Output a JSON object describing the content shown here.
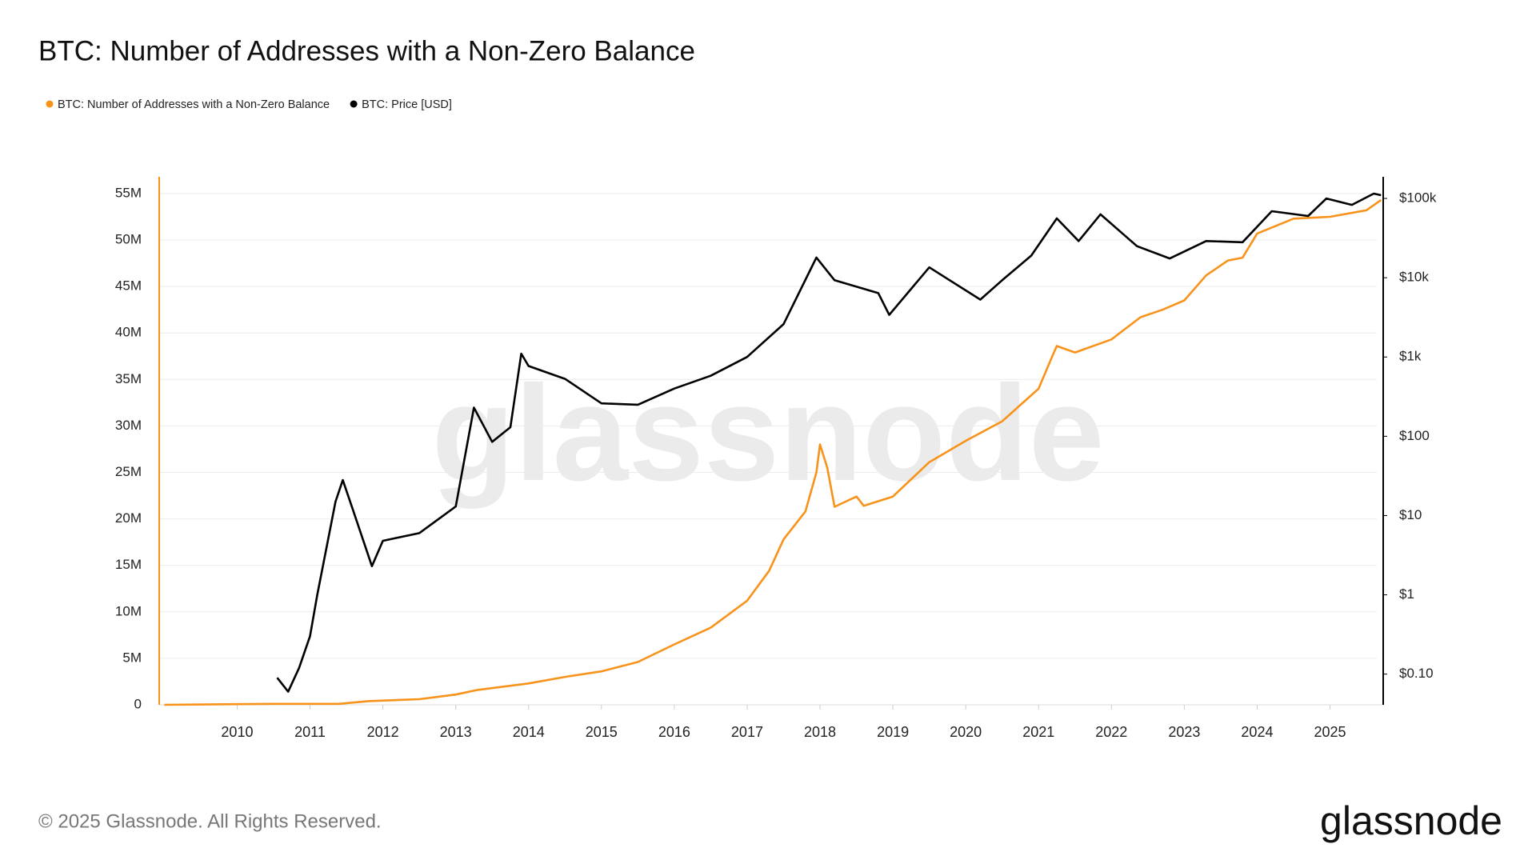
{
  "chart_data": {
    "type": "line",
    "title": "BTC: Number of Addresses with a Non-Zero Balance",
    "footer": "© 2025 Glassnode. All Rights Reserved.",
    "logo": "glassnode",
    "watermark": "glassnode",
    "xlim": [
      2008.93,
      2025.73
    ],
    "xticks": [
      2010,
      2011,
      2012,
      2013,
      2014,
      2015,
      2016,
      2017,
      2018,
      2019,
      2020,
      2021,
      2022,
      2023,
      2024,
      2025
    ],
    "ylim": [
      0,
      56800000
    ],
    "yticks": [
      0,
      {
        "value": 5000000,
        "label": "5M"
      },
      {
        "value": 10000000,
        "label": "10M"
      },
      {
        "value": 15000000,
        "label": "15M"
      },
      {
        "value": 20000000,
        "label": "20M"
      },
      {
        "value": 25000000,
        "label": "25M"
      },
      {
        "value": 30000000,
        "label": "30M"
      },
      {
        "value": 35000000,
        "label": "35M"
      },
      {
        "value": 40000000,
        "label": "40M"
      },
      {
        "value": 45000000,
        "label": "45M"
      },
      {
        "value": 50000000,
        "label": "50M"
      },
      {
        "value": 55000000,
        "label": "55M"
      }
    ],
    "y2lim": [
      0.041,
      187500
    ],
    "y2log": true,
    "y2ticks": [
      {
        "value": 0.1,
        "label": "$0.10"
      },
      {
        "value": 1,
        "label": "$1"
      },
      {
        "value": 10,
        "label": "$10"
      },
      {
        "value": 100,
        "label": "$100"
      },
      {
        "value": 1000,
        "label": "$1k"
      },
      {
        "value": 10000,
        "label": "$10k"
      },
      {
        "value": 100000,
        "label": "$100k"
      }
    ],
    "grid": true,
    "legend": "top-left",
    "series": [
      {
        "name": "BTC: Number of Addresses with a Non-Zero Balance",
        "color": "#f7931a",
        "x": [
          2009.0,
          2010.5,
          2011.4,
          2011.8,
          2012.5,
          2013.0,
          2013.3,
          2014.0,
          2014.5,
          2015.0,
          2015.5,
          2016.0,
          2016.5,
          2017.0,
          2017.3,
          2017.5,
          2017.8,
          2017.95,
          2018.0,
          2018.1,
          2018.2,
          2018.5,
          2018.6,
          2019.0,
          2019.5,
          2020.0,
          2020.5,
          2021.0,
          2021.2,
          2021.25,
          2021.5,
          2022.0,
          2022.4,
          2022.7,
          2023.0,
          2023.3,
          2023.6,
          2023.8,
          2024.0,
          2024.5,
          2025.0,
          2025.5,
          2025.7
        ],
        "values": [
          0,
          100000,
          100000,
          400000,
          600000,
          1100000,
          1600000,
          2300000,
          3000000,
          3600000,
          4600000,
          6500000,
          8300000,
          11200000,
          14400000,
          17800000,
          20800000,
          25000000,
          28000000,
          25500000,
          21300000,
          22400000,
          21400000,
          22400000,
          26100000,
          28400000,
          30500000,
          34000000,
          37700000,
          38600000,
          37900000,
          39300000,
          41700000,
          42500000,
          43500000,
          46200000,
          47800000,
          48100000,
          50700000,
          52300000,
          52500000,
          53200000,
          54300000
        ]
      },
      {
        "name": "BTC: Price [USD]",
        "color": "#000000",
        "axis": "y2",
        "x": [
          2010.55,
          2010.7,
          2010.85,
          2011.0,
          2011.1,
          2011.35,
          2011.45,
          2011.6,
          2011.85,
          2012.0,
          2012.5,
          2013.0,
          2013.25,
          2013.5,
          2013.75,
          2013.9,
          2014.0,
          2014.5,
          2015.0,
          2015.5,
          2016.0,
          2016.5,
          2017.0,
          2017.5,
          2017.95,
          2018.2,
          2018.8,
          2018.95,
          2019.5,
          2020.2,
          2020.5,
          2020.9,
          2021.25,
          2021.55,
          2021.85,
          2022.35,
          2022.8,
          2023.3,
          2023.8,
          2024.2,
          2024.7,
          2024.95,
          2025.3,
          2025.6,
          2025.7
        ],
        "values": [
          0.09,
          0.06,
          0.12,
          0.3,
          1,
          15,
          28,
          11,
          2.3,
          4.8,
          6,
          13,
          230,
          85,
          130,
          1100,
          770,
          530,
          260,
          250,
          400,
          580,
          1000,
          2600,
          18000,
          9300,
          6400,
          3400,
          13500,
          5300,
          9300,
          19000,
          56000,
          29000,
          63000,
          25000,
          17500,
          29000,
          28000,
          69000,
          60000,
          100000,
          83000,
          115000,
          110000
        ]
      }
    ]
  }
}
